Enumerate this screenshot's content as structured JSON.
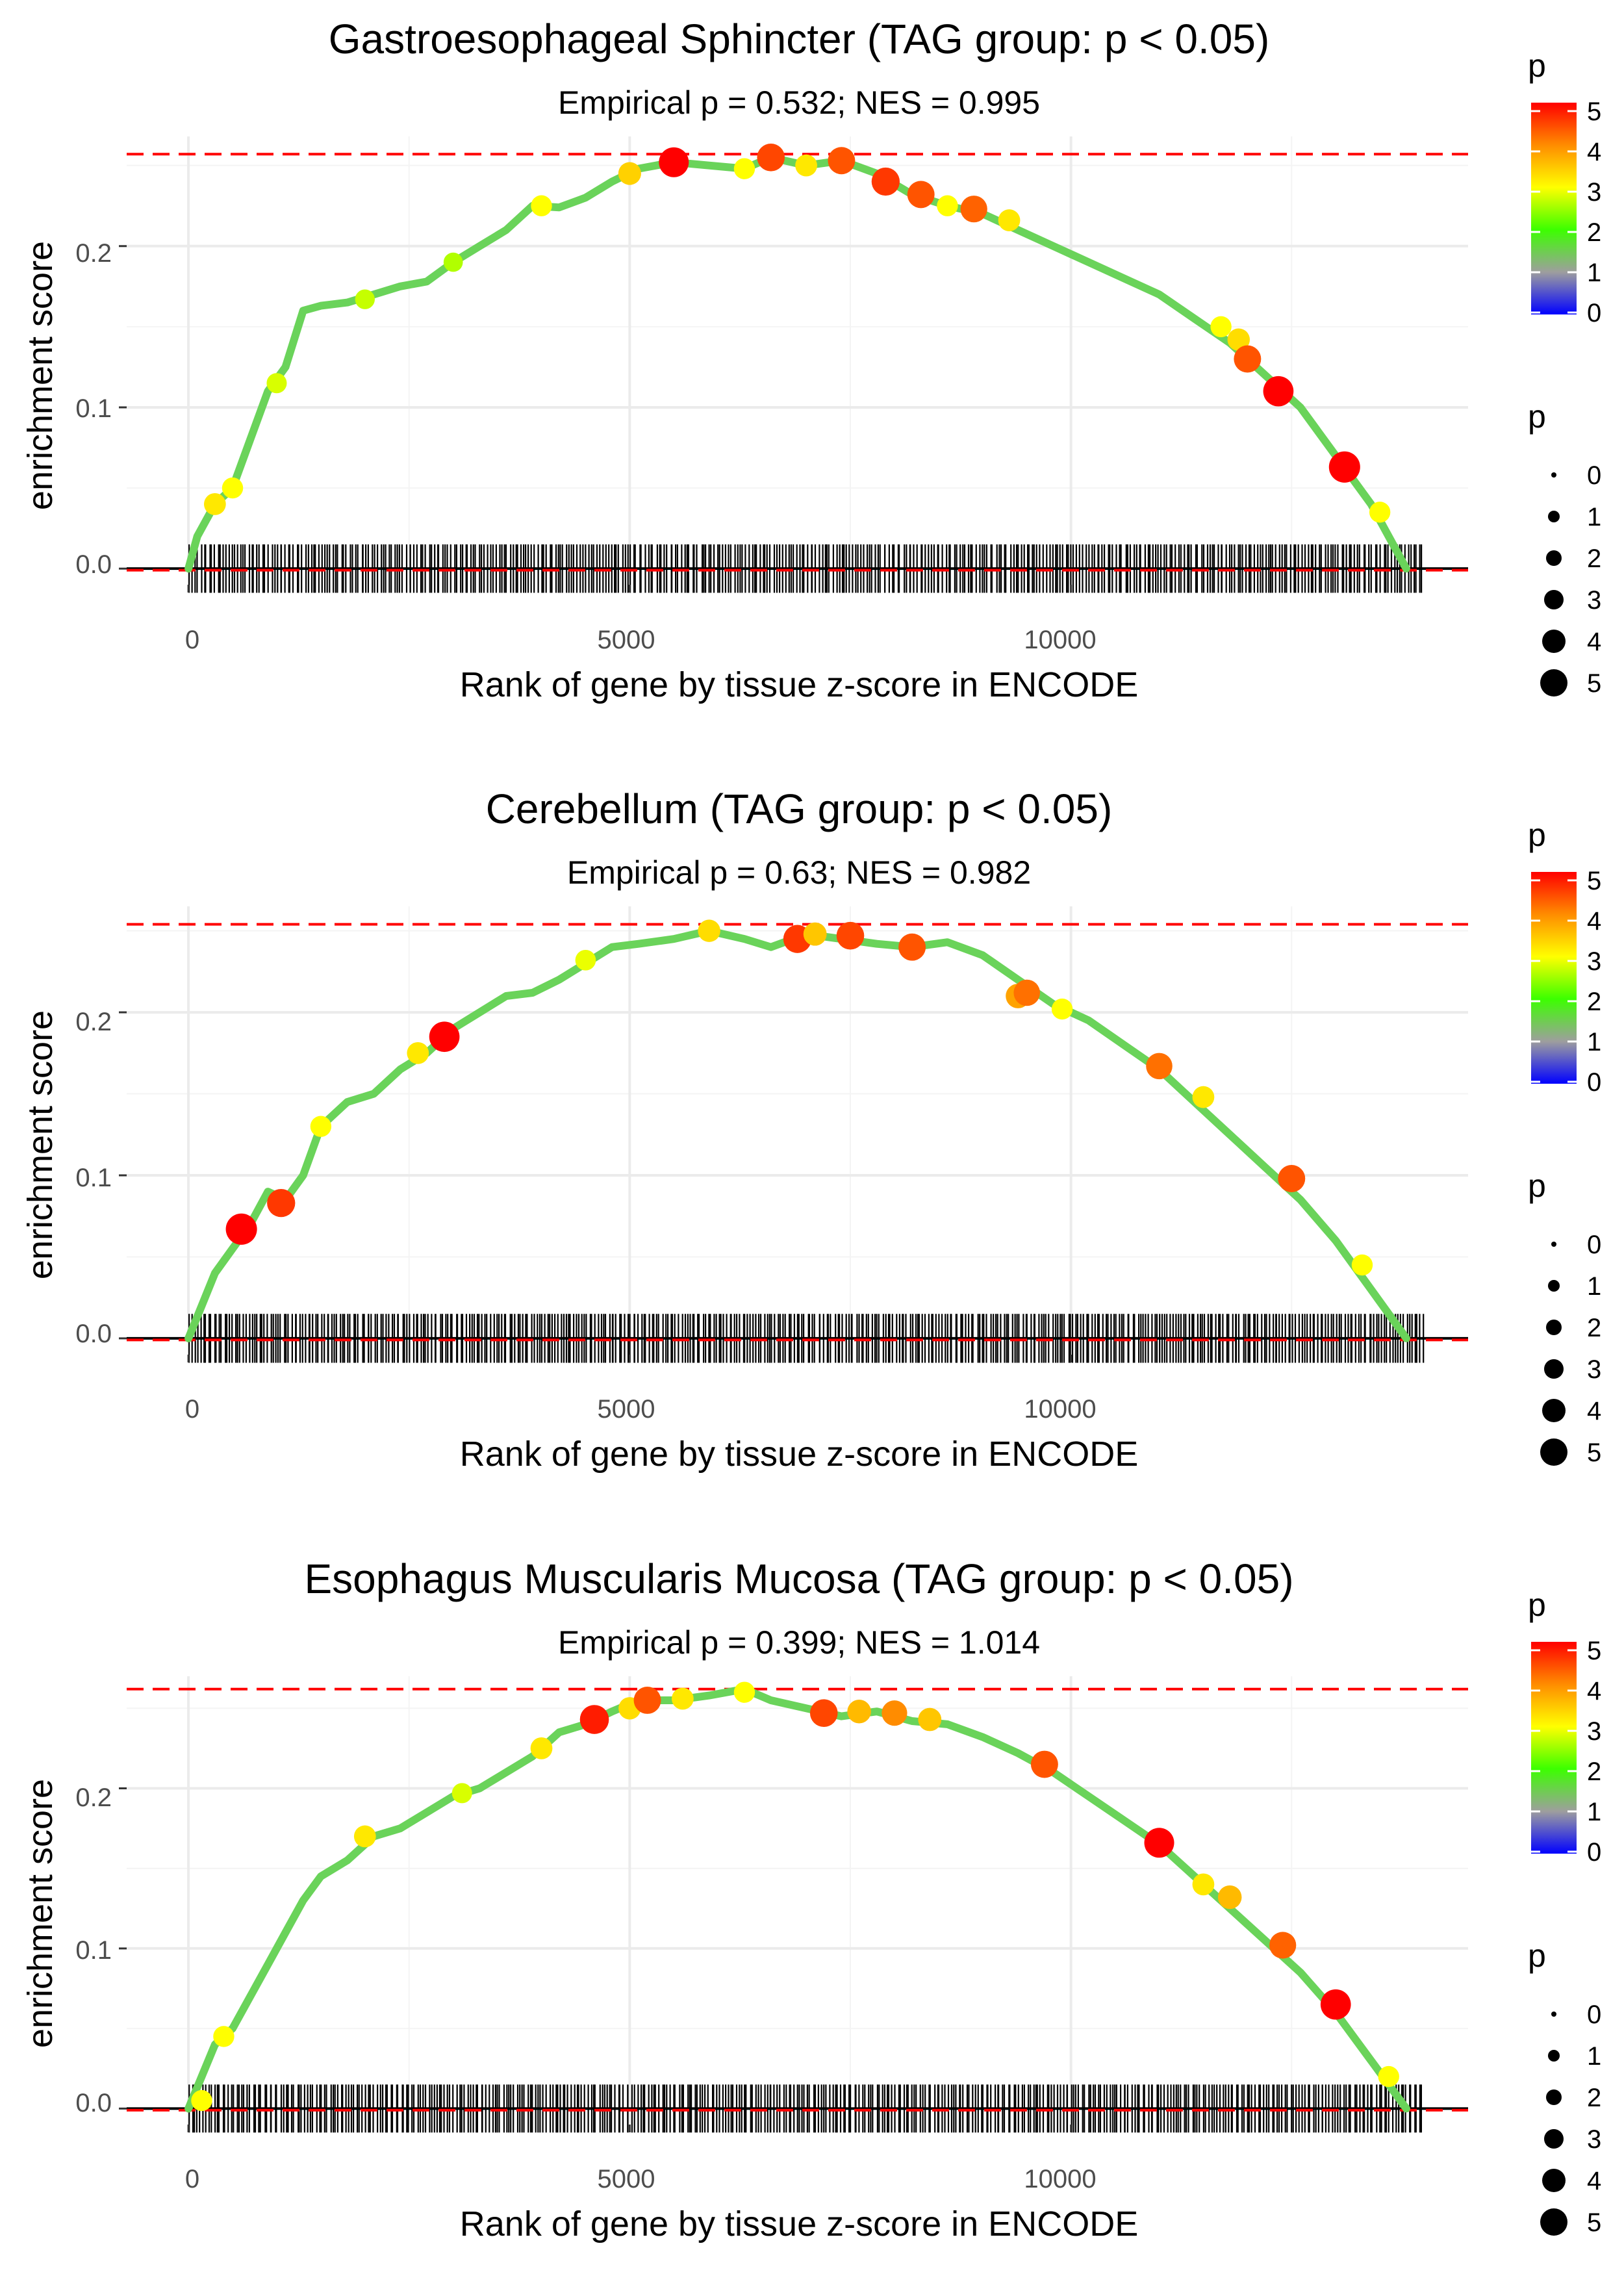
{
  "chart_data": [
    {
      "type": "line",
      "title": "Gastroesophageal Sphincter (TAG group: p < 0.05)",
      "subtitle": "Empirical p = 0.532; NES = 0.995",
      "xlabel": "Rank of gene by tissue z-score in ENCODE",
      "ylabel": "enrichment score",
      "xlim": [
        -700,
        14500
      ],
      "ylim": [
        -0.01,
        0.268
      ],
      "x_ticks": [
        0,
        5000,
        10000
      ],
      "x_tick_labels": [
        "0",
        "5000",
        "10000"
      ],
      "y_ticks": [
        0.0,
        0.1,
        0.2
      ],
      "y_tick_labels": [
        "0.0",
        "0.1",
        "0.2"
      ],
      "max_es": 0.257,
      "curve": {
        "x": [
          0,
          100,
          300,
          500,
          700,
          900,
          1100,
          1300,
          1500,
          1800,
          2100,
          2400,
          2700,
          3000,
          3300,
          3600,
          3900,
          4200,
          4500,
          4800,
          5100,
          5500,
          5900,
          6300,
          6600,
          7000,
          7400,
          7800,
          8200,
          8600,
          9000,
          9400,
          9800,
          10200,
          10600,
          11000,
          11400,
          11800,
          12200,
          12600,
          13000,
          13400,
          13800
        ],
        "y": [
          0.0,
          0.02,
          0.04,
          0.05,
          0.08,
          0.11,
          0.125,
          0.16,
          0.163,
          0.165,
          0.17,
          0.175,
          0.178,
          0.19,
          0.2,
          0.21,
          0.225,
          0.224,
          0.23,
          0.24,
          0.248,
          0.252,
          0.25,
          0.248,
          0.255,
          0.25,
          0.253,
          0.245,
          0.232,
          0.225,
          0.22,
          0.21,
          0.2,
          0.19,
          0.18,
          0.17,
          0.155,
          0.14,
          0.12,
          0.1,
          0.07,
          0.04,
          0.0
        ]
      },
      "points": [
        {
          "x": 300,
          "y": 0.04,
          "p": 3.2
        },
        {
          "x": 500,
          "y": 0.05,
          "p": 3.0
        },
        {
          "x": 1000,
          "y": 0.115,
          "p": 2.8
        },
        {
          "x": 2000,
          "y": 0.167,
          "p": 2.7
        },
        {
          "x": 3000,
          "y": 0.19,
          "p": 2.6
        },
        {
          "x": 4000,
          "y": 0.225,
          "p": 3.0
        },
        {
          "x": 5000,
          "y": 0.245,
          "p": 3.4
        },
        {
          "x": 5500,
          "y": 0.252,
          "p": 5.0
        },
        {
          "x": 6300,
          "y": 0.248,
          "p": 3.0
        },
        {
          "x": 6600,
          "y": 0.255,
          "p": 4.5
        },
        {
          "x": 7000,
          "y": 0.25,
          "p": 3.2
        },
        {
          "x": 7400,
          "y": 0.253,
          "p": 4.4
        },
        {
          "x": 7900,
          "y": 0.24,
          "p": 4.6
        },
        {
          "x": 8300,
          "y": 0.232,
          "p": 4.4
        },
        {
          "x": 8600,
          "y": 0.225,
          "p": 3.0
        },
        {
          "x": 8900,
          "y": 0.223,
          "p": 4.3
        },
        {
          "x": 9300,
          "y": 0.216,
          "p": 3.2
        },
        {
          "x": 11700,
          "y": 0.15,
          "p": 3.0
        },
        {
          "x": 11900,
          "y": 0.142,
          "p": 3.3
        },
        {
          "x": 12000,
          "y": 0.13,
          "p": 4.4
        },
        {
          "x": 12350,
          "y": 0.11,
          "p": 5.1
        },
        {
          "x": 13100,
          "y": 0.063,
          "p": 5.3
        },
        {
          "x": 13500,
          "y": 0.035,
          "p": 3.0
        }
      ],
      "rug": {
        "start": 0,
        "end": 14000,
        "count": 440,
        "seed": 11
      },
      "legend": {
        "color_title": "p",
        "color_labels": [
          "5",
          "4",
          "3",
          "2",
          "1",
          "0"
        ],
        "size_title": "p",
        "size_labels": [
          "0",
          "1",
          "2",
          "3",
          "4",
          "5"
        ]
      }
    },
    {
      "type": "line",
      "title": "Cerebellum (TAG group: p < 0.05)",
      "subtitle": "Empirical p = 0.63; NES = 0.982",
      "xlabel": "Rank of gene by tissue z-score in ENCODE",
      "ylabel": "enrichment score",
      "xlim": [
        -700,
        14500
      ],
      "ylim": [
        -0.01,
        0.265
      ],
      "x_ticks": [
        0,
        5000,
        10000
      ],
      "x_tick_labels": [
        "0",
        "5000",
        "10000"
      ],
      "y_ticks": [
        0.0,
        0.1,
        0.2
      ],
      "y_tick_labels": [
        "0.0",
        "0.1",
        "0.2"
      ],
      "max_es": 0.254,
      "curve": {
        "x": [
          0,
          150,
          300,
          500,
          700,
          900,
          1100,
          1300,
          1500,
          1800,
          2100,
          2400,
          2700,
          3000,
          3300,
          3600,
          3900,
          4200,
          4500,
          4800,
          5100,
          5500,
          5900,
          6300,
          6600,
          7000,
          7400,
          7800,
          8200,
          8600,
          9000,
          9400,
          9800,
          10200,
          10600,
          11000,
          11400,
          11800,
          12200,
          12600,
          13000,
          13400,
          13800
        ],
        "y": [
          0.0,
          0.02,
          0.04,
          0.055,
          0.07,
          0.09,
          0.085,
          0.1,
          0.13,
          0.145,
          0.15,
          0.165,
          0.175,
          0.19,
          0.2,
          0.21,
          0.212,
          0.22,
          0.23,
          0.24,
          0.242,
          0.245,
          0.25,
          0.245,
          0.24,
          0.248,
          0.245,
          0.242,
          0.24,
          0.243,
          0.235,
          0.22,
          0.205,
          0.195,
          0.18,
          0.165,
          0.145,
          0.125,
          0.105,
          0.085,
          0.06,
          0.03,
          0.0
        ]
      },
      "points": [
        {
          "x": 600,
          "y": 0.067,
          "p": 5.3
        },
        {
          "x": 1050,
          "y": 0.083,
          "p": 4.6
        },
        {
          "x": 1500,
          "y": 0.13,
          "p": 3.0
        },
        {
          "x": 2600,
          "y": 0.175,
          "p": 3.2
        },
        {
          "x": 2900,
          "y": 0.185,
          "p": 5.1
        },
        {
          "x": 4500,
          "y": 0.232,
          "p": 2.9
        },
        {
          "x": 5900,
          "y": 0.25,
          "p": 3.3
        },
        {
          "x": 6900,
          "y": 0.245,
          "p": 4.6
        },
        {
          "x": 7100,
          "y": 0.248,
          "p": 3.5
        },
        {
          "x": 7500,
          "y": 0.247,
          "p": 4.5
        },
        {
          "x": 8200,
          "y": 0.24,
          "p": 4.4
        },
        {
          "x": 9400,
          "y": 0.21,
          "p": 3.8
        },
        {
          "x": 9500,
          "y": 0.212,
          "p": 4.2
        },
        {
          "x": 9900,
          "y": 0.202,
          "p": 3.0
        },
        {
          "x": 11000,
          "y": 0.167,
          "p": 4.2
        },
        {
          "x": 11500,
          "y": 0.148,
          "p": 3.2
        },
        {
          "x": 12500,
          "y": 0.098,
          "p": 4.4
        },
        {
          "x": 13300,
          "y": 0.045,
          "p": 3.0
        }
      ],
      "rug": {
        "start": 0,
        "end": 14000,
        "count": 460,
        "seed": 23
      },
      "legend": {
        "color_title": "p",
        "color_labels": [
          "5",
          "4",
          "3",
          "2",
          "1",
          "0"
        ],
        "size_title": "p",
        "size_labels": [
          "0",
          "1",
          "2",
          "3",
          "4",
          "5"
        ]
      }
    },
    {
      "type": "line",
      "title": "Esophagus Muscularis Mucosa (TAG group: p < 0.05)",
      "subtitle": "Empirical p = 0.399; NES = 1.014",
      "xlabel": "Rank of gene by tissue z-score in ENCODE",
      "ylabel": "enrichment score",
      "xlim": [
        -700,
        14500
      ],
      "ylim": [
        -0.01,
        0.27
      ],
      "x_ticks": [
        0,
        5000,
        10000
      ],
      "x_tick_labels": [
        "0",
        "5000",
        "10000"
      ],
      "y_ticks": [
        0.0,
        0.1,
        0.2
      ],
      "y_tick_labels": [
        "0.0",
        "0.1",
        "0.2"
      ],
      "max_es": 0.262,
      "curve": {
        "x": [
          0,
          150,
          300,
          500,
          700,
          900,
          1100,
          1300,
          1500,
          1800,
          2100,
          2400,
          2700,
          3000,
          3300,
          3600,
          3900,
          4200,
          4500,
          4800,
          5100,
          5500,
          5900,
          6300,
          6600,
          7000,
          7400,
          7800,
          8200,
          8600,
          9000,
          9400,
          9800,
          10200,
          10600,
          11000,
          11400,
          11800,
          12200,
          12600,
          13000,
          13400,
          13800
        ],
        "y": [
          0.0,
          0.02,
          0.04,
          0.05,
          0.07,
          0.09,
          0.11,
          0.13,
          0.145,
          0.155,
          0.17,
          0.175,
          0.185,
          0.195,
          0.2,
          0.21,
          0.22,
          0.235,
          0.24,
          0.248,
          0.255,
          0.255,
          0.258,
          0.262,
          0.255,
          0.25,
          0.245,
          0.248,
          0.242,
          0.24,
          0.232,
          0.222,
          0.21,
          0.195,
          0.18,
          0.165,
          0.145,
          0.125,
          0.105,
          0.085,
          0.06,
          0.03,
          0.0
        ]
      },
      "points": [
        {
          "x": 150,
          "y": 0.005,
          "p": 3.0
        },
        {
          "x": 400,
          "y": 0.045,
          "p": 3.0
        },
        {
          "x": 2000,
          "y": 0.17,
          "p": 3.2
        },
        {
          "x": 3100,
          "y": 0.197,
          "p": 2.8
        },
        {
          "x": 4000,
          "y": 0.225,
          "p": 3.2
        },
        {
          "x": 4600,
          "y": 0.243,
          "p": 4.8
        },
        {
          "x": 5000,
          "y": 0.25,
          "p": 3.3
        },
        {
          "x": 5200,
          "y": 0.255,
          "p": 4.4
        },
        {
          "x": 5600,
          "y": 0.256,
          "p": 3.2
        },
        {
          "x": 6300,
          "y": 0.26,
          "p": 3.0
        },
        {
          "x": 7200,
          "y": 0.247,
          "p": 4.5
        },
        {
          "x": 7600,
          "y": 0.248,
          "p": 3.6
        },
        {
          "x": 8000,
          "y": 0.247,
          "p": 4.0
        },
        {
          "x": 8400,
          "y": 0.243,
          "p": 3.5
        },
        {
          "x": 9700,
          "y": 0.215,
          "p": 4.4
        },
        {
          "x": 11000,
          "y": 0.166,
          "p": 5.0
        },
        {
          "x": 11500,
          "y": 0.14,
          "p": 3.2
        },
        {
          "x": 11800,
          "y": 0.132,
          "p": 3.6
        },
        {
          "x": 12400,
          "y": 0.102,
          "p": 4.3
        },
        {
          "x": 13000,
          "y": 0.065,
          "p": 5.1
        },
        {
          "x": 13600,
          "y": 0.02,
          "p": 3.0
        }
      ],
      "rug": {
        "start": 0,
        "end": 14000,
        "count": 450,
        "seed": 37
      },
      "legend": {
        "color_title": "p",
        "color_labels": [
          "5",
          "4",
          "3",
          "2",
          "1",
          "0"
        ],
        "size_title": "p",
        "size_labels": [
          "0",
          "1",
          "2",
          "3",
          "4",
          "5"
        ]
      }
    }
  ],
  "colors": {
    "dashed_line": "#ff0000",
    "zero_line": "#000000",
    "gridline": "#ebebeb",
    "rug": "#000000",
    "gradient": [
      "#ff0000",
      "#ffa500",
      "#ffff00",
      "#00ff00",
      "#9e9e9e",
      "#0000ff"
    ]
  }
}
